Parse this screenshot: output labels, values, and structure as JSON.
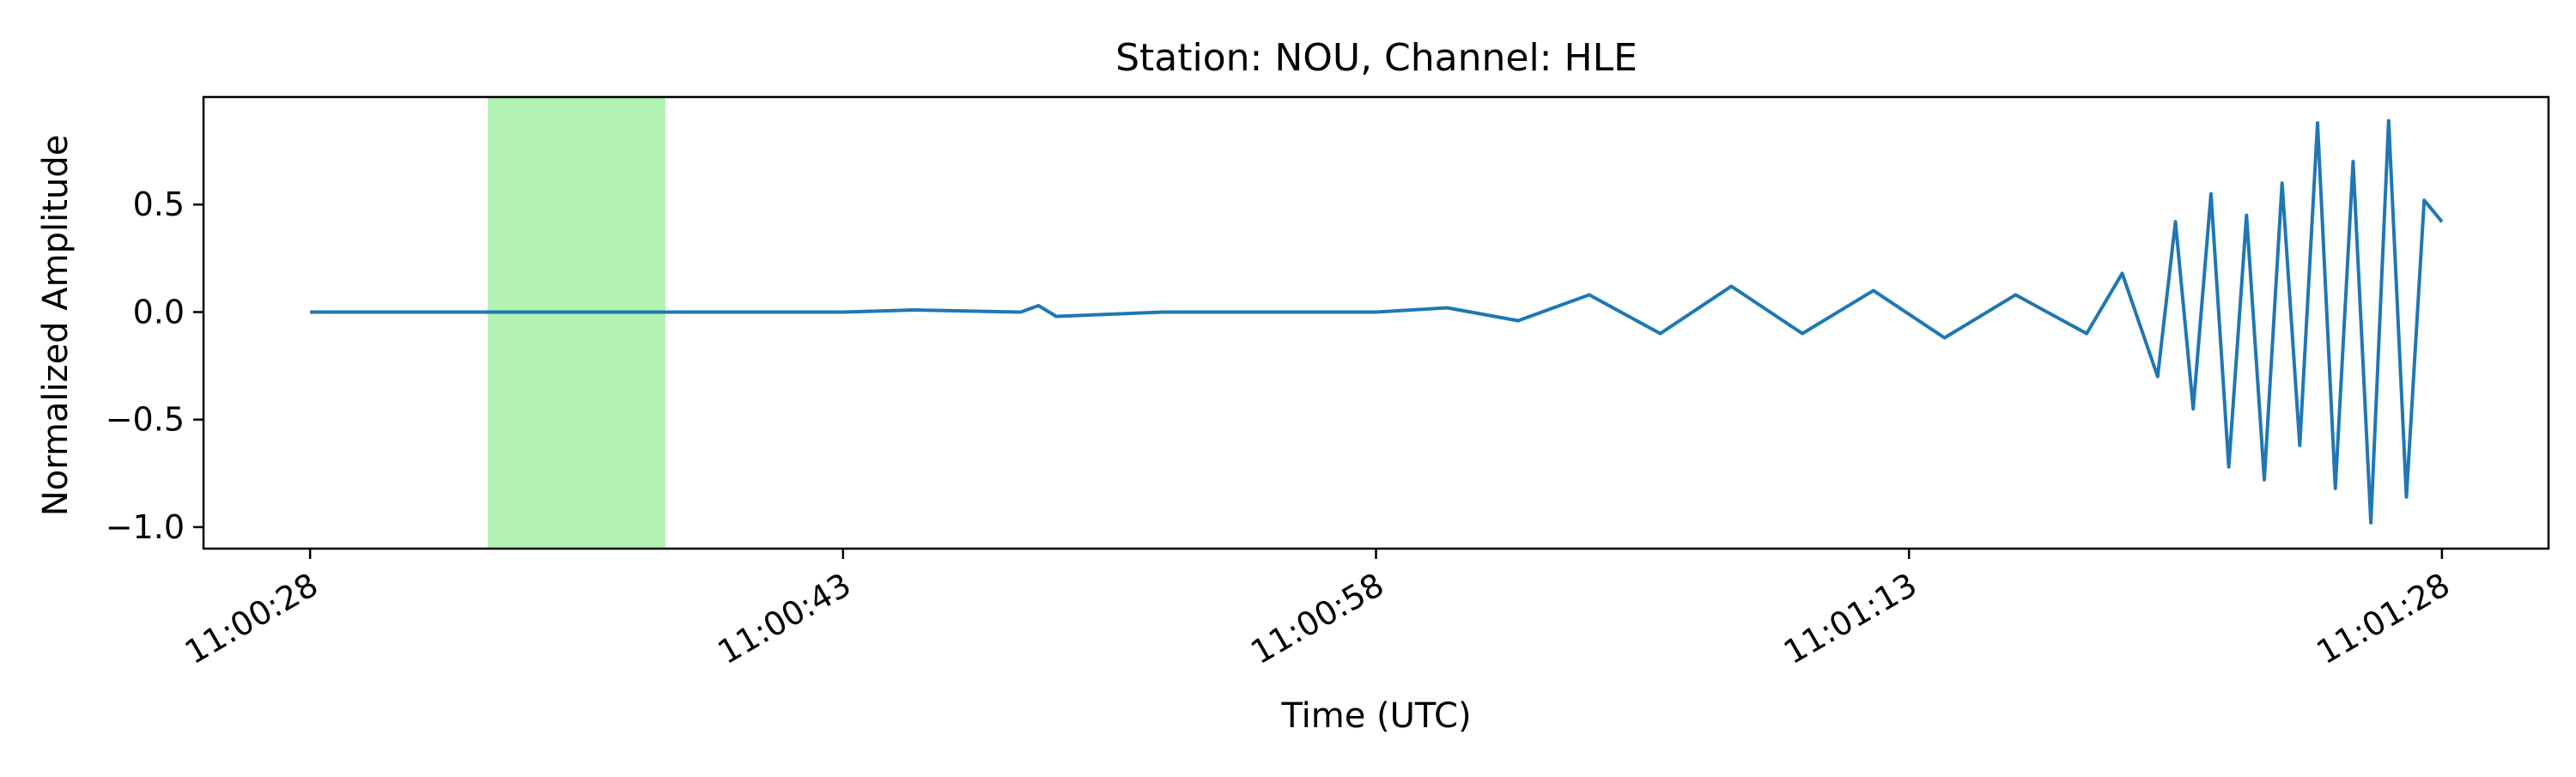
{
  "chart_data": {
    "type": "line",
    "title": "Station: NOU, Channel: HLE",
    "xlabel": "Time (UTC)",
    "ylabel": "Normalized Amplitude",
    "x_unit": "seconds",
    "xlim": [
      "11:00:25",
      "11:01:31"
    ],
    "ylim": [
      -1.1,
      1.0
    ],
    "x_ticks": [
      "11:00:28",
      "11:00:43",
      "11:00:58",
      "11:01:13",
      "11:01:28"
    ],
    "y_ticks": [
      {
        "value": 0.5,
        "label": "0.5"
      },
      {
        "value": 0.0,
        "label": "0.0"
      },
      {
        "value": -0.5,
        "label": "−0.5"
      },
      {
        "value": -1.0,
        "label": "−1.0"
      }
    ],
    "grid": false,
    "legend": "none",
    "highlight_window": {
      "start": "11:00:33",
      "end": "11:00:38",
      "color": "#b2f2b2"
    },
    "series": [
      {
        "color": "#1f77b4",
        "x": [
          "11:00:28",
          "11:00:33",
          "11:00:38",
          "11:00:43",
          "11:00:45",
          "11:00:48",
          "11:00:48.5",
          "11:00:49",
          "11:00:52",
          "11:00:56",
          "11:00:58",
          "11:01:00",
          "11:01:02",
          "11:01:04",
          "11:01:06",
          "11:01:08",
          "11:01:10",
          "11:01:12",
          "11:01:14",
          "11:01:16",
          "11:01:18",
          "11:01:19",
          "11:01:20",
          "11:01:20.5",
          "11:01:21",
          "11:01:21.5",
          "11:01:22",
          "11:01:22.5",
          "11:01:23",
          "11:01:23.5",
          "11:01:24",
          "11:01:24.5",
          "11:01:25",
          "11:01:25.5",
          "11:01:26",
          "11:01:26.5",
          "11:01:27",
          "11:01:27.5",
          "11:01:28"
        ],
        "y": [
          0.0,
          0.0,
          0.0,
          0.0,
          0.01,
          0.0,
          0.03,
          -0.02,
          0.0,
          0.0,
          0.0,
          0.02,
          -0.04,
          0.08,
          -0.1,
          0.12,
          -0.1,
          0.1,
          -0.12,
          0.08,
          -0.1,
          0.18,
          -0.3,
          0.42,
          -0.45,
          0.55,
          -0.72,
          0.45,
          -0.78,
          0.6,
          -0.62,
          0.88,
          -0.82,
          0.7,
          -0.98,
          0.89,
          -0.86,
          0.52,
          0.42
        ]
      }
    ]
  }
}
